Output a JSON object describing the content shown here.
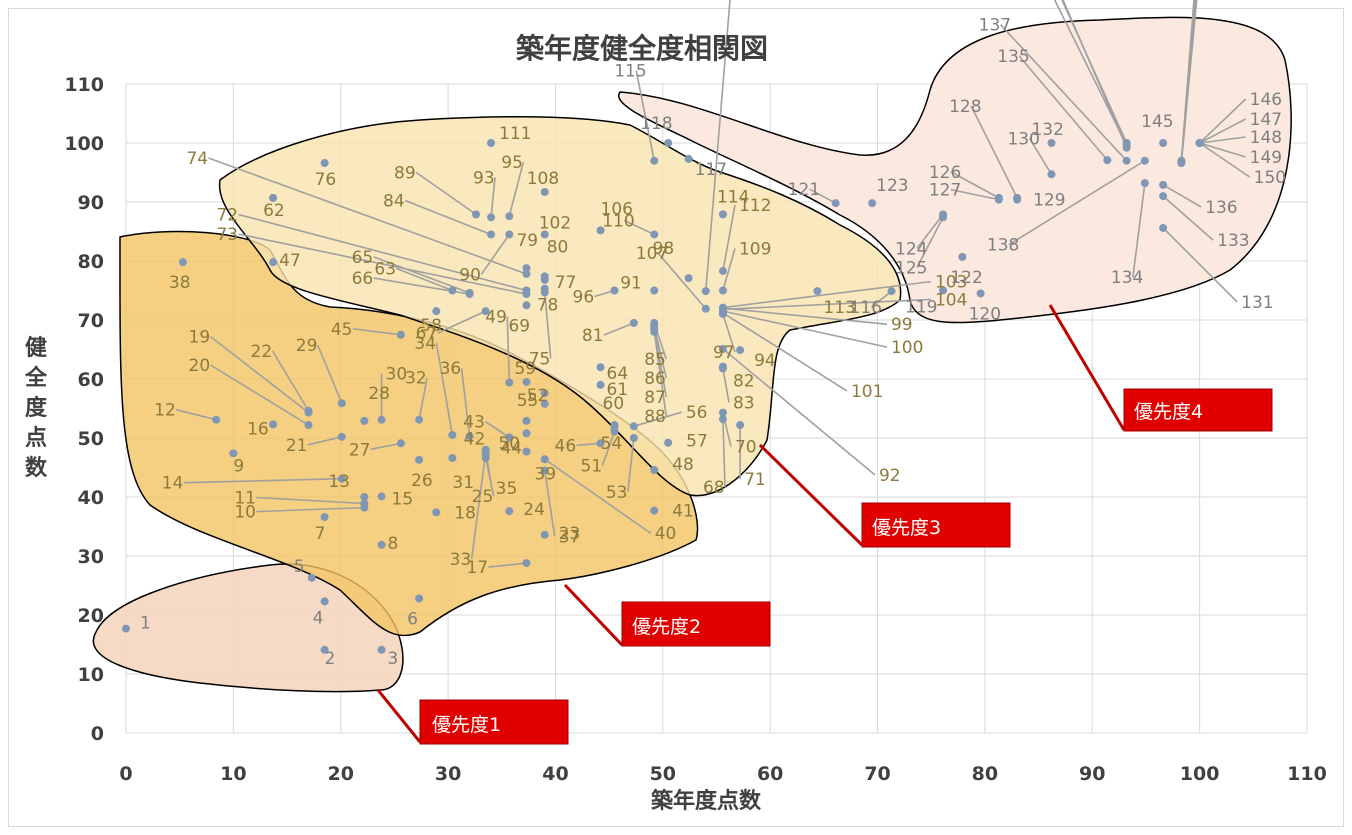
{
  "chart_data": {
    "type": "scatter",
    "title": "築年度健全度相関図",
    "xlabel": "築年度点数",
    "ylabel": "健全度点数",
    "xlim": [
      0,
      110
    ],
    "ylim": [
      0,
      110
    ],
    "xticks": [
      "0",
      "10",
      "20",
      "30",
      "40",
      "50",
      "60",
      "70",
      "80",
      "90",
      "100",
      "110"
    ],
    "yticks": [
      "0",
      "10",
      "20",
      "30",
      "40",
      "50",
      "60",
      "70",
      "80",
      "90",
      "100",
      "110"
    ],
    "grid": true,
    "colors": {
      "points": "#7f96b4",
      "priority1": "#f6d4bc",
      "priority2": "#f3c463",
      "priority3": "#f9e3ae",
      "priority4": "#fbe7dd",
      "callout": "#e00000",
      "grid": "#d9d9d9"
    },
    "points": [
      {
        "id": "1",
        "x": 0,
        "y": 17.7
      },
      {
        "id": "2",
        "x": 18.5,
        "y": 14.1
      },
      {
        "id": "3",
        "x": 23.8,
        "y": 14.1
      },
      {
        "id": "4",
        "x": 18.5,
        "y": 22.3
      },
      {
        "id": "5",
        "x": 17.3,
        "y": 26.3
      },
      {
        "id": "6",
        "x": 27.3,
        "y": 22.8
      },
      {
        "id": "7",
        "x": 18.5,
        "y": 36.6
      },
      {
        "id": "8",
        "x": 23.8,
        "y": 31.9
      },
      {
        "id": "9",
        "x": 10,
        "y": 47.4
      },
      {
        "id": "10",
        "x": 22.2,
        "y": 38.2
      },
      {
        "id": "11",
        "x": 22.2,
        "y": 38.9
      },
      {
        "id": "12",
        "x": 8.4,
        "y": 53.1
      },
      {
        "id": "13",
        "x": 22.2,
        "y": 40.0
      },
      {
        "id": "14",
        "x": 20.1,
        "y": 43.1
      },
      {
        "id": "15",
        "x": 23.8,
        "y": 40.1
      },
      {
        "id": "16",
        "x": 13.7,
        "y": 52.3
      },
      {
        "id": "17",
        "x": 37.3,
        "y": 28.8
      },
      {
        "id": "18",
        "x": 28.9,
        "y": 37.4
      },
      {
        "id": "19",
        "x": 17.0,
        "y": 54.3
      },
      {
        "id": "20",
        "x": 17.0,
        "y": 52.2
      },
      {
        "id": "21",
        "x": 20.1,
        "y": 50.2
      },
      {
        "id": "22",
        "x": 17.0,
        "y": 54.6
      },
      {
        "id": "23",
        "x": 39.0,
        "y": 33.6
      },
      {
        "id": "24",
        "x": 35.7,
        "y": 37.6
      },
      {
        "id": "25",
        "x": 33.5,
        "y": 46.6
      },
      {
        "id": "26",
        "x": 27.3,
        "y": 46.3
      },
      {
        "id": "27",
        "x": 25.6,
        "y": 49.1
      },
      {
        "id": "28",
        "x": 22.2,
        "y": 52.9
      },
      {
        "id": "29",
        "x": 20.1,
        "y": 55.9
      },
      {
        "id": "30",
        "x": 23.8,
        "y": 53.1
      },
      {
        "id": "31",
        "x": 30.4,
        "y": 46.6
      },
      {
        "id": "32",
        "x": 27.3,
        "y": 53.1
      },
      {
        "id": "33",
        "x": 33.5,
        "y": 47.5
      },
      {
        "id": "34",
        "x": 30.4,
        "y": 50.5
      },
      {
        "id": "35",
        "x": 33.5,
        "y": 48.0
      },
      {
        "id": "36",
        "x": 32.0,
        "y": 50.3
      },
      {
        "id": "37",
        "x": 39.0,
        "y": 44.5
      },
      {
        "id": "38",
        "x": 5.3,
        "y": 79.8
      },
      {
        "id": "39",
        "x": 37.3,
        "y": 47.7
      },
      {
        "id": "40",
        "x": 39.0,
        "y": 46.4
      },
      {
        "id": "41",
        "x": 49.2,
        "y": 37.7
      },
      {
        "id": "42",
        "x": 33.5,
        "y": 47.2
      },
      {
        "id": "43",
        "x": 35.7,
        "y": 50.1
      },
      {
        "id": "44",
        "x": 37.3,
        "y": 50.8
      },
      {
        "id": "45",
        "x": 25.6,
        "y": 67.5
      },
      {
        "id": "46",
        "x": 44.2,
        "y": 49.1
      },
      {
        "id": "47",
        "x": 13.7,
        "y": 79.8
      },
      {
        "id": "48",
        "x": 49.2,
        "y": 44.6
      },
      {
        "id": "49",
        "x": 35.7,
        "y": 59.4
      },
      {
        "id": "50",
        "x": 37.3,
        "y": 52.9
      },
      {
        "id": "51",
        "x": 45.5,
        "y": 51.1
      },
      {
        "id": "52",
        "x": 39.0,
        "y": 57.6
      },
      {
        "id": "53",
        "x": 47.3,
        "y": 50.0
      },
      {
        "id": "54",
        "x": 45.5,
        "y": 52.2
      },
      {
        "id": "55",
        "x": 39.0,
        "y": 55.8
      },
      {
        "id": "56",
        "x": 47.3,
        "y": 52.0
      },
      {
        "id": "57",
        "x": 50.5,
        "y": 49.2
      },
      {
        "id": "58",
        "x": 28.9,
        "y": 71.5
      },
      {
        "id": "59",
        "x": 37.3,
        "y": 59.5
      },
      {
        "id": "60",
        "x": 45.5,
        "y": 51.9
      },
      {
        "id": "61",
        "x": 44.2,
        "y": 59.0
      },
      {
        "id": "62",
        "x": 13.7,
        "y": 90.7
      },
      {
        "id": "63",
        "x": 30.4,
        "y": 75.0
      },
      {
        "id": "64",
        "x": 44.2,
        "y": 62.0
      },
      {
        "id": "65",
        "x": 32.0,
        "y": 74.6
      },
      {
        "id": "66",
        "x": 32.0,
        "y": 74.4
      },
      {
        "id": "67",
        "x": 33.5,
        "y": 71.5
      },
      {
        "id": "68",
        "x": 55.6,
        "y": 53.2
      },
      {
        "id": "69",
        "x": 37.3,
        "y": 72.5
      },
      {
        "id": "70",
        "x": 55.6,
        "y": 54.3
      },
      {
        "id": "71",
        "x": 57.2,
        "y": 52.2
      },
      {
        "id": "72",
        "x": 37.3,
        "y": 75.0
      },
      {
        "id": "73",
        "x": 37.3,
        "y": 74.4
      },
      {
        "id": "74",
        "x": 37.3,
        "y": 77.8
      },
      {
        "id": "75",
        "x": 39.0,
        "y": 74.7
      },
      {
        "id": "76",
        "x": 18.5,
        "y": 96.6
      },
      {
        "id": "77",
        "x": 39.0,
        "y": 76.8
      },
      {
        "id": "78",
        "x": 39.0,
        "y": 75.3
      },
      {
        "id": "79",
        "x": 37.3,
        "y": 78.8
      },
      {
        "id": "80",
        "x": 39.0,
        "y": 77.4
      },
      {
        "id": "81",
        "x": 47.3,
        "y": 69.5
      },
      {
        "id": "82",
        "x": 55.6,
        "y": 62.1
      },
      {
        "id": "83",
        "x": 55.6,
        "y": 61.8
      },
      {
        "id": "84",
        "x": 34.0,
        "y": 84.5
      },
      {
        "id": "85",
        "x": 49.2,
        "y": 69.5
      },
      {
        "id": "86",
        "x": 49.2,
        "y": 69.0
      },
      {
        "id": "87",
        "x": 49.2,
        "y": 68.5
      },
      {
        "id": "88",
        "x": 49.2,
        "y": 68.0
      },
      {
        "id": "89",
        "x": 32.6,
        "y": 87.9
      },
      {
        "id": "90",
        "x": 35.7,
        "y": 84.5
      },
      {
        "id": "91",
        "x": 49.2,
        "y": 75.0
      },
      {
        "id": "92",
        "x": 55.6,
        "y": 65.1
      },
      {
        "id": "93",
        "x": 34.0,
        "y": 87.4
      },
      {
        "id": "94",
        "x": 57.2,
        "y": 64.9
      },
      {
        "id": "95",
        "x": 35.7,
        "y": 87.6
      },
      {
        "id": "96",
        "x": 45.5,
        "y": 75.0
      },
      {
        "id": "97",
        "x": 55.6,
        "y": 71.0
      },
      {
        "id": "98",
        "x": 52.4,
        "y": 77.1
      },
      {
        "id": "99",
        "x": 55.6,
        "y": 72.0
      },
      {
        "id": "100",
        "x": 55.6,
        "y": 71.5
      },
      {
        "id": "101",
        "x": 55.6,
        "y": 71.2
      },
      {
        "id": "102",
        "x": 39.0,
        "y": 84.5
      },
      {
        "id": "103",
        "x": 55.6,
        "y": 72.1
      },
      {
        "id": "104",
        "x": 55.6,
        "y": 71.8
      },
      {
        "id": "105",
        "x": 54.0,
        "y": 74.9
      },
      {
        "id": "106",
        "x": 44.2,
        "y": 85.2
      },
      {
        "id": "107",
        "x": 54.0,
        "y": 71.9
      },
      {
        "id": "108",
        "x": 39.0,
        "y": 91.7
      },
      {
        "id": "109",
        "x": 55.6,
        "y": 75.0
      },
      {
        "id": "110",
        "x": 49.2,
        "y": 84.5
      },
      {
        "id": "111",
        "x": 34.0,
        "y": 100.0
      },
      {
        "id": "112",
        "x": 55.6,
        "y": 78.3
      },
      {
        "id": "113",
        "x": 64.4,
        "y": 74.9
      },
      {
        "id": "114",
        "x": 55.6,
        "y": 87.9
      },
      {
        "id": "115",
        "x": 49.2,
        "y": 97.0
      },
      {
        "id": "116",
        "x": 71.3,
        "y": 74.9
      },
      {
        "id": "117",
        "x": 52.4,
        "y": 97.3
      },
      {
        "id": "118",
        "x": 50.5,
        "y": 100.0
      },
      {
        "id": "119",
        "x": 76.1,
        "y": 75.0
      },
      {
        "id": "120",
        "x": 79.6,
        "y": 74.5
      },
      {
        "id": "121",
        "x": 66.1,
        "y": 89.8
      },
      {
        "id": "122",
        "x": 77.9,
        "y": 80.7
      },
      {
        "id": "123",
        "x": 69.5,
        "y": 89.8
      },
      {
        "id": "124",
        "x": 76.1,
        "y": 87.9
      },
      {
        "id": "125",
        "x": 76.1,
        "y": 87.4
      },
      {
        "id": "126",
        "x": 81.3,
        "y": 90.7
      },
      {
        "id": "127",
        "x": 81.3,
        "y": 90.4
      },
      {
        "id": "128",
        "x": 83.0,
        "y": 90.7
      },
      {
        "id": "129",
        "x": 83.0,
        "y": 90.4
      },
      {
        "id": "130",
        "x": 86.2,
        "y": 94.7
      },
      {
        "id": "131",
        "x": 96.6,
        "y": 85.6
      },
      {
        "id": "132",
        "x": 86.2,
        "y": 100.0
      },
      {
        "id": "133",
        "x": 96.6,
        "y": 91.0
      },
      {
        "id": "134",
        "x": 94.9,
        "y": 93.2
      },
      {
        "id": "135",
        "x": 91.4,
        "y": 97.1
      },
      {
        "id": "136",
        "x": 96.6,
        "y": 92.9
      },
      {
        "id": "137",
        "x": 93.2,
        "y": 97.0
      },
      {
        "id": "138",
        "x": 94.9,
        "y": 97.0
      },
      {
        "id": "139",
        "x": 93.2,
        "y": 100.0
      },
      {
        "id": "140",
        "x": 93.2,
        "y": 99.6
      },
      {
        "id": "141",
        "x": 93.2,
        "y": 99.2
      },
      {
        "id": "142",
        "x": 98.3,
        "y": 97.0
      },
      {
        "id": "143",
        "x": 98.3,
        "y": 96.8
      },
      {
        "id": "144",
        "x": 98.3,
        "y": 96.6
      },
      {
        "id": "145",
        "x": 96.6,
        "y": 100.0
      },
      {
        "id": "146",
        "x": 100,
        "y": 100
      },
      {
        "id": "147",
        "x": 100,
        "y": 100
      },
      {
        "id": "148",
        "x": 100,
        "y": 100
      },
      {
        "id": "149",
        "x": 100,
        "y": 100
      },
      {
        "id": "150",
        "x": 100,
        "y": 100
      }
    ],
    "annotations": [
      {
        "id": "priority1",
        "label": "優先度1"
      },
      {
        "id": "priority2",
        "label": "優先度2"
      },
      {
        "id": "priority3",
        "label": "優先度3"
      },
      {
        "id": "priority4",
        "label": "優先度4"
      }
    ]
  }
}
